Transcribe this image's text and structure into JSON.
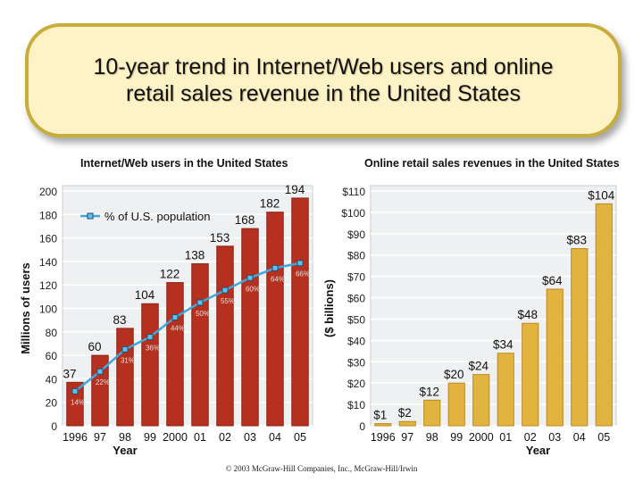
{
  "title": {
    "line1": "10-year trend in Internet/Web users and online",
    "line2": "retail sales revenue in the United States"
  },
  "footer": "© 2003 McGraw-Hill Companies, Inc., McGraw-Hill/Irwin",
  "colors": {
    "title_bg": "#fdf3c6",
    "title_border": "#c9ad3a",
    "panel_bg": "#eef0f2",
    "bar_red": "#b5301e",
    "bar_gold": "#e3b33f",
    "line_blue": "#3fa7dc"
  },
  "chart_data": [
    {
      "type": "bar",
      "title": "Internet/Web users in the United States",
      "xlabel": "Year",
      "ylabel": "Millions of users",
      "categories": [
        "1996",
        "97",
        "98",
        "99",
        "2000",
        "01",
        "02",
        "03",
        "04",
        "05"
      ],
      "ylim": [
        0,
        200
      ],
      "yticks": [
        "0",
        "20",
        "40",
        "60",
        "80",
        "100",
        "120",
        "140",
        "160",
        "180",
        "200"
      ],
      "series": [
        {
          "values": [
            37,
            60,
            83,
            104,
            122,
            138,
            153,
            168,
            182,
            194
          ],
          "labels": [
            "37",
            "60",
            "83",
            "104",
            "122",
            "138",
            "153",
            "168",
            "182",
            "194"
          ]
        }
      ],
      "line_series": {
        "name": "% of U.S. population",
        "values": [
          14,
          22,
          31,
          36,
          44,
          50,
          55,
          60,
          64,
          66
        ],
        "labels": [
          "14%",
          "22%",
          "31%",
          "36%",
          "44%",
          "50%",
          "55%",
          "60%",
          "64%",
          "66%"
        ]
      },
      "legend": "top-left",
      "grid": true
    },
    {
      "type": "bar",
      "title": "Online retail sales revenues in the United States",
      "xlabel": "Year",
      "ylabel": "($ billions)",
      "categories": [
        "1996",
        "97",
        "98",
        "99",
        "2000",
        "01",
        "02",
        "03",
        "04",
        "05"
      ],
      "ylim": [
        0,
        110
      ],
      "yticks": [
        "0",
        "$10",
        "$20",
        "$30",
        "$40",
        "$50",
        "$60",
        "$70",
        "$80",
        "$90",
        "$100",
        "$110"
      ],
      "series": [
        {
          "values": [
            1,
            2,
            12,
            20,
            24,
            34,
            48,
            64,
            83,
            104
          ],
          "labels": [
            "$1",
            "$2",
            "$12",
            "$20",
            "$24",
            "$34",
            "$48",
            "$64",
            "$83",
            "$104"
          ]
        }
      ],
      "grid": true
    }
  ]
}
